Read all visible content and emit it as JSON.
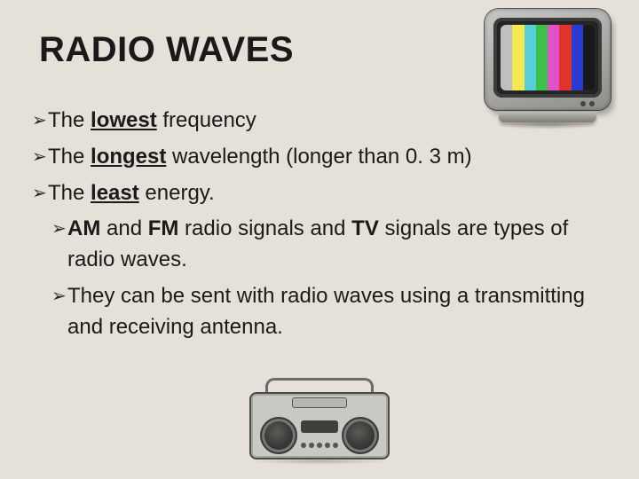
{
  "title": "RADIO WAVES",
  "bullets": {
    "b1": {
      "pre": "The",
      "emph": "lowest",
      "post": "frequency"
    },
    "b2": {
      "pre": "The",
      "emph": "longest",
      "post": "wavelength (longer than 0. 3 m)"
    },
    "b3": {
      "pre": "The",
      "emph": "least",
      "post": "energy."
    },
    "s1": {
      "am": "AM",
      "mid1": "and",
      "fm": "FM",
      "mid2": "radio signals and",
      "tv": "TV",
      "post": "signals are types of radio waves."
    },
    "s2": {
      "text": "They can be sent with radio waves using a transmitting and receiving antenna."
    }
  },
  "arrow_glyph": "➢",
  "colors": {
    "background": "#e6e1d8",
    "text": "#1a1a1a",
    "tv_bars": [
      "#bfbfbf",
      "#f5e850",
      "#56d0d6",
      "#3cc24a",
      "#e152c8",
      "#e2322d",
      "#2a3bd4",
      "#1a1a1a"
    ]
  },
  "illustrations": {
    "tv": {
      "name": "crt-tv-color-bars"
    },
    "boombox": {
      "name": "boombox-radio"
    }
  }
}
